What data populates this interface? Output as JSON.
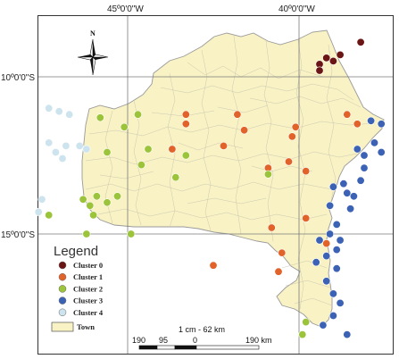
{
  "map": {
    "coordinates": {
      "lon_top": [
        "45º0'0\"W",
        "40º0'0\"W"
      ],
      "lat_left": [
        "10º0'0\"S",
        "15º0'0\"S"
      ]
    },
    "north_label": "N",
    "legend": {
      "title": "Legend",
      "items": [
        {
          "label": "Cluster 0",
          "color": "#6b1515"
        },
        {
          "label": "Cluster 1",
          "color": "#e2632a"
        },
        {
          "label": "Cluster 2",
          "color": "#9bc43a"
        },
        {
          "label": "Cluster 3",
          "color": "#3c62b5"
        },
        {
          "label": "Cluster 4",
          "color": "#cde4ef"
        }
      ],
      "town_label": "Town",
      "town_color": "#f8f2c4"
    },
    "scale": {
      "ratio": "1 cm - 62 km",
      "ticks": [
        "190",
        "95",
        "0",
        "190 km"
      ]
    }
  },
  "chart_data": {
    "type": "scatter",
    "x_units": "degrees longitude (W negative)",
    "y_units": "degrees latitude (S negative)",
    "series": [
      {
        "name": "Cluster 0",
        "points": [
          [
            -38.2,
            -8.9
          ],
          [
            -38.8,
            -9.3
          ],
          [
            -39.0,
            -9.5
          ],
          [
            -39.2,
            -9.4
          ],
          [
            -39.4,
            -9.6
          ],
          [
            -39.4,
            -9.8
          ]
        ]
      },
      {
        "name": "Cluster 1",
        "points": [
          [
            -43.3,
            -11.2
          ],
          [
            -43.3,
            -11.5
          ],
          [
            -41.8,
            -11.2
          ],
          [
            -41.6,
            -11.7
          ],
          [
            -40.1,
            -11.6
          ],
          [
            -40.2,
            -11.9
          ],
          [
            -38.6,
            -11.2
          ],
          [
            -38.3,
            -11.5
          ],
          [
            -43.7,
            -12.3
          ],
          [
            -42.2,
            -12.2
          ],
          [
            -40.3,
            -12.7
          ],
          [
            -40.9,
            -12.9
          ],
          [
            -39.8,
            -13.0
          ],
          [
            -40.8,
            -14.8
          ],
          [
            -39.8,
            -14.5
          ],
          [
            -40.5,
            -15.6
          ],
          [
            -42.5,
            -16.0
          ],
          [
            -40.6,
            -16.2
          ],
          [
            -39.2,
            -15.3
          ]
        ]
      },
      {
        "name": "Cluster 2",
        "points": [
          [
            -45.8,
            -11.3
          ],
          [
            -45.1,
            -11.6
          ],
          [
            -44.7,
            -11.2
          ],
          [
            -46.4,
            -12.2
          ],
          [
            -45.6,
            -12.4
          ],
          [
            -44.4,
            -12.3
          ],
          [
            -44.6,
            -12.8
          ],
          [
            -43.3,
            -12.5
          ],
          [
            -43.6,
            -13.2
          ],
          [
            -45.9,
            -13.8
          ],
          [
            -46.1,
            -14.1
          ],
          [
            -46.0,
            -14.4
          ],
          [
            -45.6,
            -14.0
          ],
          [
            -45.3,
            -13.8
          ],
          [
            -46.3,
            -13.9
          ],
          [
            -47.3,
            -14.4
          ],
          [
            -46.2,
            -15.0
          ],
          [
            -44.9,
            -15.0
          ],
          [
            -40.9,
            -13.1
          ],
          [
            -39.8,
            -17.8
          ],
          [
            -39.9,
            -18.2
          ]
        ]
      },
      {
        "name": "Cluster 3",
        "points": [
          [
            -37.9,
            -11.4
          ],
          [
            -37.6,
            -11.5
          ],
          [
            -37.8,
            -12.1
          ],
          [
            -37.6,
            -12.4
          ],
          [
            -38.1,
            -12.5
          ],
          [
            -38.3,
            -12.3
          ],
          [
            -38.1,
            -12.9
          ],
          [
            -38.2,
            -13.3
          ],
          [
            -38.7,
            -13.4
          ],
          [
            -38.6,
            -13.7
          ],
          [
            -39.0,
            -13.5
          ],
          [
            -38.4,
            -13.8
          ],
          [
            -39.1,
            -14.1
          ],
          [
            -38.5,
            -14.2
          ],
          [
            -38.9,
            -14.7
          ],
          [
            -39.1,
            -15.0
          ],
          [
            -38.8,
            -15.2
          ],
          [
            -39.4,
            -15.2
          ],
          [
            -38.9,
            -15.5
          ],
          [
            -39.2,
            -15.7
          ],
          [
            -39.5,
            -15.9
          ],
          [
            -38.9,
            -16.1
          ],
          [
            -39.2,
            -16.5
          ],
          [
            -39.0,
            -16.9
          ],
          [
            -38.8,
            -17.2
          ],
          [
            -39.0,
            -17.6
          ],
          [
            -39.3,
            -17.9
          ],
          [
            -38.6,
            -18.2
          ]
        ]
      },
      {
        "name": "Cluster 4",
        "points": [
          [
            -47.3,
            -11.0
          ],
          [
            -47.0,
            -11.1
          ],
          [
            -46.7,
            -11.2
          ],
          [
            -47.3,
            -12.1
          ],
          [
            -46.8,
            -12.2
          ],
          [
            -46.4,
            -12.2
          ],
          [
            -46.2,
            -12.3
          ],
          [
            -47.1,
            -12.4
          ],
          [
            -46.9,
            -12.6
          ],
          [
            -47.5,
            -13.9
          ],
          [
            -47.6,
            -14.3
          ]
        ]
      }
    ]
  }
}
